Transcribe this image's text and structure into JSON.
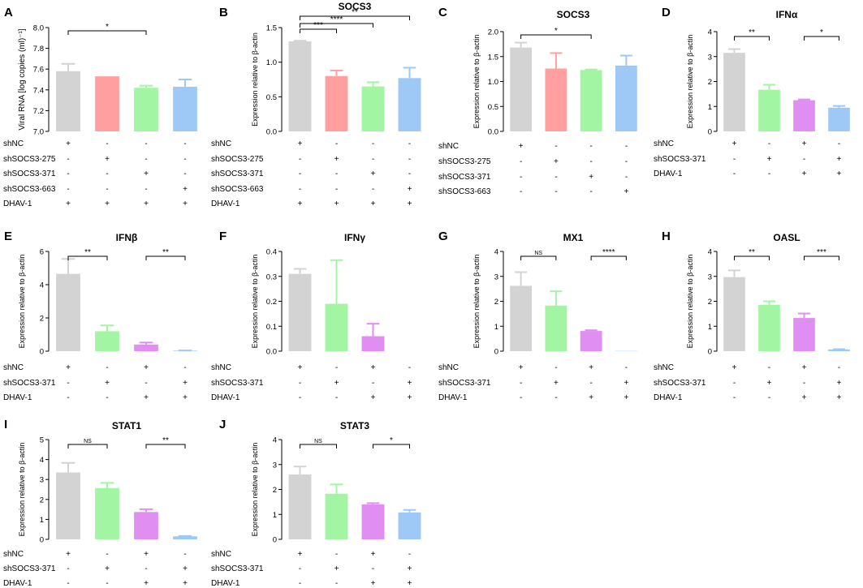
{
  "colors": {
    "gray": "#d3d3d3",
    "red": "#ff9f9f",
    "green": "#a2f5a2",
    "blue": "#9ec9f6",
    "purple": "#e08ef2"
  },
  "chart_data": [
    {
      "id": "A",
      "panel_label": "A",
      "type": "bar",
      "title": "",
      "ylabel": "Viral RNA [log copies (ml)⁻¹]",
      "ylim": [
        7.0,
        8.0
      ],
      "yticks": [
        "7.0",
        "7.2",
        "7.4",
        "7.6",
        "7.8",
        "8.0"
      ],
      "values": [
        7.58,
        7.53,
        7.42,
        7.43
      ],
      "errors": [
        0.07,
        0.0,
        0.02,
        0.07
      ],
      "colors": [
        "gray",
        "red",
        "green",
        "blue"
      ],
      "sig": [
        {
          "from": 0,
          "to": 2,
          "label": "*"
        }
      ],
      "table": [
        {
          "label": "shNC",
          "marks": [
            "+",
            "-",
            "-",
            "-"
          ]
        },
        {
          "label": "shSOCS3-275",
          "marks": [
            "-",
            "+",
            "-",
            "-"
          ]
        },
        {
          "label": "shSOCS3-371",
          "marks": [
            "-",
            "-",
            "+",
            "-"
          ]
        },
        {
          "label": "shSOCS3-663",
          "marks": [
            "-",
            "-",
            "-",
            "+"
          ]
        },
        {
          "label": "DHAV-1",
          "marks": [
            "+",
            "+",
            "+",
            "+"
          ]
        }
      ]
    },
    {
      "id": "B",
      "panel_label": "B",
      "type": "bar",
      "title": "SOCS3",
      "ylabel": "Expression relative to β-actin",
      "ylim": [
        0,
        1.5
      ],
      "yticks": [
        "0.0",
        "0.5",
        "1.0",
        "1.5"
      ],
      "values": [
        1.3,
        0.8,
        0.65,
        0.77
      ],
      "errors": [
        0.01,
        0.08,
        0.06,
        0.15
      ],
      "colors": [
        "gray",
        "red",
        "green",
        "blue"
      ],
      "sig": [
        {
          "from": 0,
          "to": 1,
          "label": "***"
        },
        {
          "from": 0,
          "to": 2,
          "label": "****"
        },
        {
          "from": 0,
          "to": 3,
          "label": "**"
        }
      ],
      "table": [
        {
          "label": "shNC",
          "marks": [
            "+",
            "-",
            "-",
            "-"
          ]
        },
        {
          "label": "shSOCS3-275",
          "marks": [
            "-",
            "+",
            "-",
            "-"
          ]
        },
        {
          "label": "shSOCS3-371",
          "marks": [
            "-",
            "-",
            "+",
            "-"
          ]
        },
        {
          "label": "shSOCS3-663",
          "marks": [
            "-",
            "-",
            "-",
            "+"
          ]
        },
        {
          "label": "DHAV-1",
          "marks": [
            "+",
            "+",
            "+",
            "+"
          ]
        }
      ]
    },
    {
      "id": "C",
      "panel_label": "C",
      "type": "bar",
      "title": "SOCS3",
      "ylabel": "Expression relative to β-actin",
      "ylim": [
        0,
        2.0
      ],
      "yticks": [
        "0.0",
        "0.5",
        "1.0",
        "1.5",
        "2.0"
      ],
      "values": [
        1.68,
        1.26,
        1.23,
        1.32
      ],
      "errors": [
        0.1,
        0.31,
        0.01,
        0.2
      ],
      "colors": [
        "gray",
        "red",
        "green",
        "blue"
      ],
      "sig": [
        {
          "from": 0,
          "to": 2,
          "label": "*"
        }
      ],
      "table": [
        {
          "label": "shNC",
          "marks": [
            "+",
            "-",
            "-",
            "-"
          ]
        },
        {
          "label": "shSOCS3-275",
          "marks": [
            "-",
            "+",
            "-",
            "-"
          ]
        },
        {
          "label": "shSOCS3-371",
          "marks": [
            "-",
            "-",
            "+",
            "-"
          ]
        },
        {
          "label": "shSOCS3-663",
          "marks": [
            "-",
            "-",
            "-",
            "+"
          ]
        }
      ]
    },
    {
      "id": "D",
      "panel_label": "D",
      "type": "bar",
      "title": "IFNα",
      "ylabel": "Expression relative to β-actin",
      "ylim": [
        0,
        4
      ],
      "yticks": [
        "0",
        "1",
        "2",
        "3",
        "4"
      ],
      "values": [
        3.15,
        1.67,
        1.25,
        0.95
      ],
      "errors": [
        0.15,
        0.2,
        0.03,
        0.07
      ],
      "colors": [
        "gray",
        "green",
        "purple",
        "blue"
      ],
      "sig": [
        {
          "from": 0,
          "to": 1,
          "label": "**"
        },
        {
          "from": 2,
          "to": 3,
          "label": "*"
        }
      ],
      "table": [
        {
          "label": "shNC",
          "marks": [
            "+",
            "-",
            "+",
            "-"
          ]
        },
        {
          "label": "shSOCS3-371",
          "marks": [
            "-",
            "+",
            "-",
            "+"
          ]
        },
        {
          "label": "DHAV-1",
          "marks": [
            "-",
            "-",
            "+",
            "+"
          ]
        }
      ]
    },
    {
      "id": "E",
      "panel_label": "E",
      "type": "bar",
      "title": "IFNβ",
      "ylabel": "Expression relative to β-actin",
      "ylim": [
        0,
        6
      ],
      "yticks": [
        "0",
        "2",
        "4",
        "6"
      ],
      "values": [
        4.65,
        1.2,
        0.4,
        0.03
      ],
      "errors": [
        0.9,
        0.35,
        0.12,
        0.01
      ],
      "colors": [
        "gray",
        "green",
        "purple",
        "blue"
      ],
      "sig": [
        {
          "from": 0,
          "to": 1,
          "label": "**"
        },
        {
          "from": 2,
          "to": 3,
          "label": "**"
        }
      ],
      "table": [
        {
          "label": "shNC",
          "marks": [
            "+",
            "-",
            "+",
            "-"
          ]
        },
        {
          "label": "shSOCS3-371",
          "marks": [
            "-",
            "+",
            "-",
            "+"
          ]
        },
        {
          "label": "DHAV-1",
          "marks": [
            "-",
            "-",
            "+",
            "+"
          ]
        }
      ]
    },
    {
      "id": "F",
      "panel_label": "F",
      "type": "bar",
      "title": "IFNγ",
      "ylabel": "Expression relative to β-actin",
      "ylim": [
        0,
        0.4
      ],
      "yticks": [
        "0.0",
        "0.1",
        "0.2",
        "0.3",
        "0.4"
      ],
      "values": [
        0.31,
        0.19,
        0.06,
        0.0
      ],
      "errors": [
        0.02,
        0.175,
        0.05,
        0.0
      ],
      "colors": [
        "gray",
        "green",
        "purple",
        "blue"
      ],
      "sig": [],
      "table": [
        {
          "label": "shNC",
          "marks": [
            "+",
            "-",
            "+",
            "-"
          ]
        },
        {
          "label": "shSOCS3-371",
          "marks": [
            "-",
            "+",
            "-",
            "+"
          ]
        },
        {
          "label": "DHAV-1",
          "marks": [
            "-",
            "-",
            "+",
            "+"
          ]
        }
      ]
    },
    {
      "id": "G",
      "panel_label": "G",
      "type": "bar",
      "title": "MX1",
      "ylabel": "Expression relative to β-actin",
      "ylim": [
        0,
        4
      ],
      "yticks": [
        "0",
        "1",
        "2",
        "3",
        "4"
      ],
      "values": [
        2.62,
        1.83,
        0.81,
        0.01
      ],
      "errors": [
        0.55,
        0.57,
        0.03,
        0.0
      ],
      "colors": [
        "gray",
        "green",
        "purple",
        "blue"
      ],
      "sig": [
        {
          "from": 0,
          "to": 1,
          "label": "NS"
        },
        {
          "from": 2,
          "to": 3,
          "label": "****"
        }
      ],
      "table": [
        {
          "label": "shNC",
          "marks": [
            "+",
            "-",
            "+",
            "-"
          ]
        },
        {
          "label": "shSOCS3-371",
          "marks": [
            "-",
            "+",
            "-",
            "+"
          ]
        },
        {
          "label": "DHAV-1",
          "marks": [
            "-",
            "-",
            "+",
            "+"
          ]
        }
      ]
    },
    {
      "id": "H",
      "panel_label": "H",
      "type": "bar",
      "title": "OASL",
      "ylabel": "Expression relative to β-actin",
      "ylim": [
        0,
        4
      ],
      "yticks": [
        "0",
        "1",
        "2",
        "3",
        "4"
      ],
      "values": [
        2.97,
        1.86,
        1.33,
        0.07
      ],
      "errors": [
        0.27,
        0.14,
        0.18,
        0.01
      ],
      "colors": [
        "gray",
        "green",
        "purple",
        "blue"
      ],
      "sig": [
        {
          "from": 0,
          "to": 1,
          "label": "**"
        },
        {
          "from": 2,
          "to": 3,
          "label": "***"
        }
      ],
      "table": [
        {
          "label": "shNC",
          "marks": [
            "+",
            "-",
            "+",
            "-"
          ]
        },
        {
          "label": "shSOCS3-371",
          "marks": [
            "-",
            "+",
            "-",
            "+"
          ]
        },
        {
          "label": "DHAV-1",
          "marks": [
            "-",
            "-",
            "+",
            "+"
          ]
        }
      ]
    },
    {
      "id": "I",
      "panel_label": "I",
      "type": "bar",
      "title": "STAT1",
      "ylabel": "Expression relative to β-actin",
      "ylim": [
        0,
        5
      ],
      "yticks": [
        "0",
        "1",
        "2",
        "3",
        "4",
        "5"
      ],
      "values": [
        3.35,
        2.57,
        1.37,
        0.15
      ],
      "errors": [
        0.48,
        0.26,
        0.14,
        0.02
      ],
      "colors": [
        "gray",
        "green",
        "purple",
        "blue"
      ],
      "sig": [
        {
          "from": 0,
          "to": 1,
          "label": "NS"
        },
        {
          "from": 2,
          "to": 3,
          "label": "**"
        }
      ],
      "table": [
        {
          "label": "shNC",
          "marks": [
            "+",
            "-",
            "+",
            "-"
          ]
        },
        {
          "label": "shSOCS3-371",
          "marks": [
            "-",
            "+",
            "-",
            "+"
          ]
        },
        {
          "label": "DHAV-1",
          "marks": [
            "-",
            "-",
            "+",
            "+"
          ]
        }
      ]
    },
    {
      "id": "J",
      "panel_label": "J",
      "type": "bar",
      "title": "STAT3",
      "ylabel": "Expression relative to β-actin",
      "ylim": [
        0,
        4
      ],
      "yticks": [
        "0",
        "1",
        "2",
        "3",
        "4"
      ],
      "values": [
        2.6,
        1.83,
        1.4,
        1.08
      ],
      "errors": [
        0.32,
        0.37,
        0.05,
        0.1
      ],
      "colors": [
        "gray",
        "green",
        "purple",
        "blue"
      ],
      "sig": [
        {
          "from": 0,
          "to": 1,
          "label": "NS"
        },
        {
          "from": 2,
          "to": 3,
          "label": "*"
        }
      ],
      "table": [
        {
          "label": "shNC",
          "marks": [
            "+",
            "-",
            "+",
            "-"
          ]
        },
        {
          "label": "shSOCS3-371",
          "marks": [
            "-",
            "+",
            "-",
            "+"
          ]
        },
        {
          "label": "DHAV-1",
          "marks": [
            "-",
            "-",
            "+",
            "+"
          ]
        }
      ]
    }
  ]
}
